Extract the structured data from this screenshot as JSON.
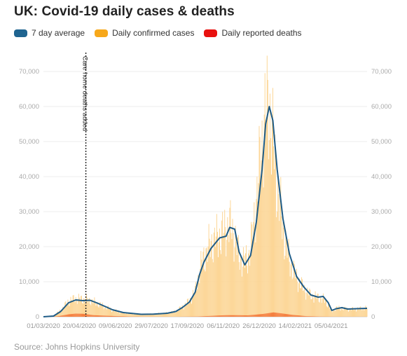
{
  "header": {
    "title": "UK: Covid-19 daily cases & deaths"
  },
  "footer": {
    "source": "Source: Johns Hopkins University"
  },
  "chart_data": {
    "type": "bar",
    "title": "UK: Covid-19 daily cases & deaths",
    "xlabel": "",
    "ylabel": "",
    "ylim": [
      0,
      70000
    ],
    "yticks": [
      0,
      10000,
      20000,
      30000,
      40000,
      50000,
      60000,
      70000
    ],
    "ytick_labels": [
      "0",
      "10,000",
      "20,000",
      "30,000",
      "40,000",
      "50,000",
      "60,000",
      "70,000"
    ],
    "xlim": [
      "2020-03-01",
      "2021-05-25"
    ],
    "xticks": [
      "2020-03-01",
      "2020-04-20",
      "2020-06-09",
      "2020-07-29",
      "2020-09-17",
      "2020-11-06",
      "2020-12-26",
      "2021-02-14",
      "2021-04-05"
    ],
    "xtick_labels": [
      "01/03/2020",
      "20/04/2020",
      "09/06/2020",
      "29/07/2020",
      "17/09/2020",
      "06/11/2020",
      "26/12/2020",
      "14/02/2021",
      "05/04/2021"
    ],
    "grid": true,
    "legend_position": "top-left",
    "colors": {
      "avg": "#1f5c87",
      "cases": "#fcd38f",
      "deaths": "#f4793a",
      "marker": "#222222",
      "grid": "#eeeeee",
      "legend_cases": "#f7a81b",
      "legend_deaths": "#e8110f"
    },
    "legend": [
      {
        "label": "7 day average",
        "color": "#1f6490"
      },
      {
        "label": "Daily confirmed cases",
        "color": "#f7a81b"
      },
      {
        "label": "Daily reported deaths",
        "color": "#e8110f"
      }
    ],
    "annotations": [
      {
        "date": "2020-04-29",
        "label": "Care home deaths added"
      }
    ],
    "series": [
      {
        "name": "7 day average",
        "kind": "line",
        "points": [
          [
            "2020-03-01",
            0
          ],
          [
            "2020-03-15",
            200
          ],
          [
            "2020-03-25",
            1500
          ],
          [
            "2020-04-05",
            4000
          ],
          [
            "2020-04-15",
            4800
          ],
          [
            "2020-04-25",
            4600
          ],
          [
            "2020-05-05",
            4700
          ],
          [
            "2020-05-15",
            3900
          ],
          [
            "2020-05-25",
            3000
          ],
          [
            "2020-06-05",
            2000
          ],
          [
            "2020-06-20",
            1200
          ],
          [
            "2020-07-05",
            900
          ],
          [
            "2020-07-15",
            700
          ],
          [
            "2020-08-01",
            750
          ],
          [
            "2020-08-20",
            1000
          ],
          [
            "2020-09-01",
            1500
          ],
          [
            "2020-09-10",
            2600
          ],
          [
            "2020-09-20",
            4200
          ],
          [
            "2020-09-28",
            7000
          ],
          [
            "2020-10-04",
            12000
          ],
          [
            "2020-10-10",
            15500
          ],
          [
            "2020-10-20",
            19500
          ],
          [
            "2020-11-01",
            22500
          ],
          [
            "2020-11-10",
            23000
          ],
          [
            "2020-11-15",
            25500
          ],
          [
            "2020-11-22",
            25000
          ],
          [
            "2020-11-28",
            18500
          ],
          [
            "2020-12-06",
            14800
          ],
          [
            "2020-12-14",
            17500
          ],
          [
            "2020-12-22",
            27000
          ],
          [
            "2020-12-30",
            42000
          ],
          [
            "2021-01-04",
            55000
          ],
          [
            "2021-01-09",
            60000
          ],
          [
            "2021-01-14",
            56000
          ],
          [
            "2021-01-20",
            42000
          ],
          [
            "2021-01-28",
            28000
          ],
          [
            "2021-02-06",
            18000
          ],
          [
            "2021-02-16",
            11500
          ],
          [
            "2021-02-26",
            8500
          ],
          [
            "2021-03-08",
            6200
          ],
          [
            "2021-03-18",
            5600
          ],
          [
            "2021-03-25",
            5800
          ],
          [
            "2021-04-01",
            4000
          ],
          [
            "2021-04-06",
            1800
          ],
          [
            "2021-04-12",
            2300
          ],
          [
            "2021-04-20",
            2600
          ],
          [
            "2021-04-28",
            2200
          ],
          [
            "2021-05-10",
            2300
          ],
          [
            "2021-05-25",
            2400
          ]
        ]
      },
      {
        "name": "Daily confirmed cases",
        "kind": "bar",
        "points": [
          [
            "2020-03-01",
            0
          ],
          [
            "2020-03-15",
            300
          ],
          [
            "2020-03-25",
            1800
          ],
          [
            "2020-04-05",
            4500
          ],
          [
            "2020-04-15",
            5200
          ],
          [
            "2020-04-25",
            5000
          ],
          [
            "2020-05-05",
            4700
          ],
          [
            "2020-05-15",
            3800
          ],
          [
            "2020-05-25",
            2900
          ],
          [
            "2020-06-05",
            1900
          ],
          [
            "2020-06-20",
            1100
          ],
          [
            "2020-07-05",
            900
          ],
          [
            "2020-07-15",
            650
          ],
          [
            "2020-08-01",
            800
          ],
          [
            "2020-08-20",
            1050
          ],
          [
            "2020-09-01",
            1600
          ],
          [
            "2020-09-10",
            2800
          ],
          [
            "2020-09-20",
            4500
          ],
          [
            "2020-09-28",
            7200
          ],
          [
            "2020-10-04",
            13000
          ],
          [
            "2020-10-10",
            17000
          ],
          [
            "2020-10-20",
            21000
          ],
          [
            "2020-11-01",
            23000
          ],
          [
            "2020-11-10",
            25000
          ],
          [
            "2020-11-15",
            26000
          ],
          [
            "2020-11-22",
            23000
          ],
          [
            "2020-11-28",
            17000
          ],
          [
            "2020-12-06",
            15500
          ],
          [
            "2020-12-14",
            19000
          ],
          [
            "2020-12-22",
            33000
          ],
          [
            "2020-12-30",
            50000
          ],
          [
            "2021-01-04",
            58000
          ],
          [
            "2021-01-09",
            60000
          ],
          [
            "2021-01-14",
            50000
          ],
          [
            "2021-01-20",
            38000
          ],
          [
            "2021-01-28",
            25000
          ],
          [
            "2021-02-06",
            16000
          ],
          [
            "2021-02-16",
            11000
          ],
          [
            "2021-02-26",
            8000
          ],
          [
            "2021-03-08",
            6000
          ],
          [
            "2021-03-18",
            5500
          ],
          [
            "2021-03-25",
            5000
          ],
          [
            "2021-04-01",
            3500
          ],
          [
            "2021-04-06",
            1500
          ],
          [
            "2021-04-12",
            2500
          ],
          [
            "2021-04-20",
            2400
          ],
          [
            "2021-04-28",
            2100
          ],
          [
            "2021-05-10",
            2200
          ],
          [
            "2021-05-25",
            2500
          ]
        ]
      },
      {
        "name": "Daily reported deaths",
        "kind": "bar",
        "points": [
          [
            "2020-03-01",
            0
          ],
          [
            "2020-03-20",
            100
          ],
          [
            "2020-04-05",
            700
          ],
          [
            "2020-04-15",
            900
          ],
          [
            "2020-04-25",
            850
          ],
          [
            "2020-05-10",
            450
          ],
          [
            "2020-06-01",
            250
          ],
          [
            "2020-07-01",
            60
          ],
          [
            "2020-09-01",
            10
          ],
          [
            "2020-10-01",
            70
          ],
          [
            "2020-10-20",
            250
          ],
          [
            "2020-11-10",
            450
          ],
          [
            "2020-11-25",
            450
          ],
          [
            "2020-12-10",
            400
          ],
          [
            "2020-12-31",
            800
          ],
          [
            "2021-01-15",
            1250
          ],
          [
            "2021-01-25",
            1000
          ],
          [
            "2021-02-10",
            550
          ],
          [
            "2021-03-01",
            180
          ],
          [
            "2021-03-20",
            60
          ],
          [
            "2021-04-10",
            20
          ],
          [
            "2021-05-25",
            10
          ]
        ]
      }
    ]
  }
}
